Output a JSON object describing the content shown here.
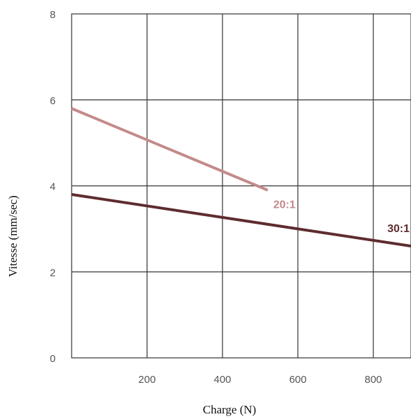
{
  "chart_data": {
    "type": "line",
    "xlabel": "Charge (N)",
    "ylabel": "Vitesse (mm/sec)",
    "xlim": [
      0,
      900
    ],
    "ylim": [
      0,
      8
    ],
    "x_ticks": [
      "200",
      "400",
      "600",
      "800"
    ],
    "y_ticks": [
      "0",
      "2",
      "4",
      "6",
      "8"
    ],
    "grid": true,
    "series": [
      {
        "name": "20:1",
        "color": "#c48a8a",
        "x": [
          0,
          520
        ],
        "y": [
          5.8,
          3.9
        ]
      },
      {
        "name": "30:1",
        "color": "#5e2c2f",
        "x": [
          0,
          900
        ],
        "y": [
          3.8,
          2.6
        ]
      }
    ]
  }
}
